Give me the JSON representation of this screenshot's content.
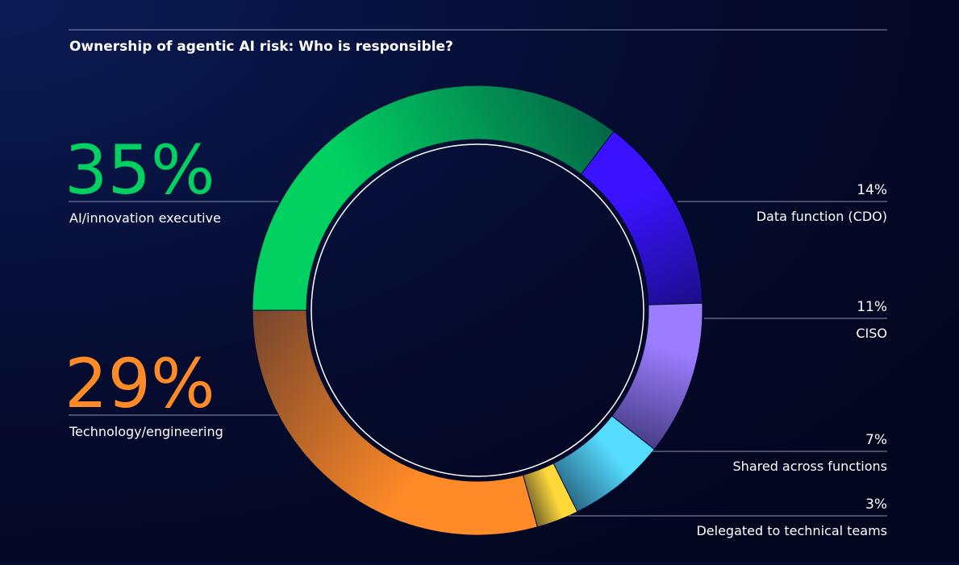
{
  "chart_data": {
    "type": "donut",
    "title": "Ownership of agentic AI risk: Who is responsible?",
    "categories": [
      "AI/innovation executive",
      "Data function (CDO)",
      "CISO",
      "Shared across functions",
      "Delegated to technical teams",
      "Technology/engineering"
    ],
    "values": [
      35,
      14,
      11,
      7,
      3,
      29
    ],
    "value_labels": [
      "35%",
      "14%",
      "11%",
      "7%",
      "3%",
      "29%"
    ],
    "colors": [
      "#00d160",
      "#3a12ff",
      "#9b7dff",
      "#56dcff",
      "#ffd83a",
      "#ff8a28"
    ]
  }
}
